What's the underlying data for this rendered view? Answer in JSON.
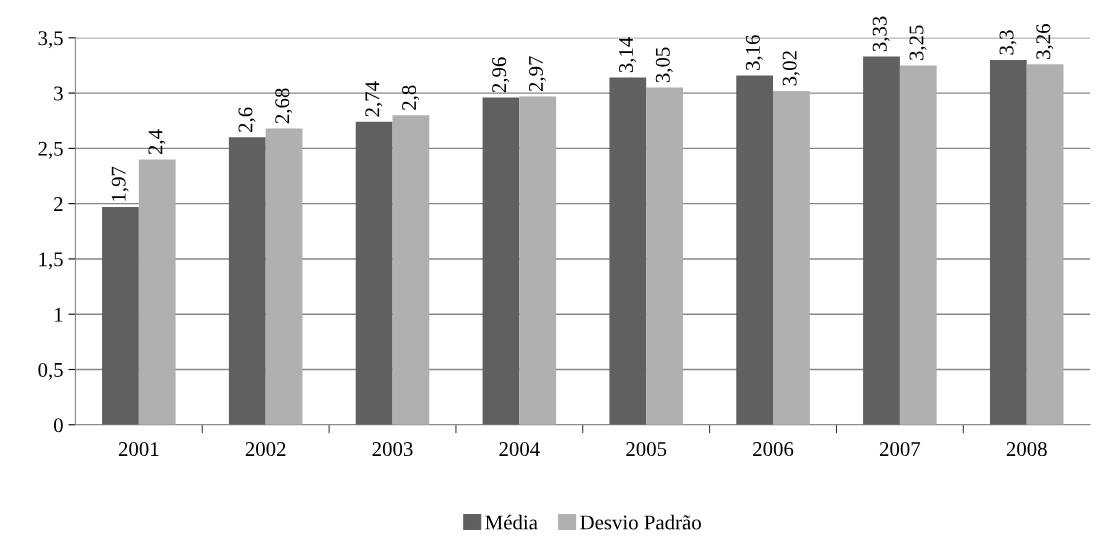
{
  "chart_data": {
    "type": "bar",
    "categories": [
      "2001",
      "2002",
      "2003",
      "2004",
      "2005",
      "2006",
      "2007",
      "2008"
    ],
    "series": [
      {
        "name": "Média",
        "color": "#606060",
        "values": [
          1.97,
          2.6,
          2.74,
          2.96,
          3.14,
          3.16,
          3.33,
          3.3
        ],
        "value_labels": [
          "1,97",
          "2,6",
          "2,74",
          "2,96",
          "3,14",
          "3,16",
          "3,33",
          "3,3"
        ]
      },
      {
        "name": "Desvio Padrão",
        "color": "#b0b0b0",
        "values": [
          2.4,
          2.68,
          2.8,
          2.97,
          3.05,
          3.02,
          3.25,
          3.26
        ],
        "value_labels": [
          "2,4",
          "2,68",
          "2,8",
          "2,97",
          "3,05",
          "3,02",
          "3,25",
          "3,26"
        ]
      }
    ],
    "ylim": [
      0,
      3.5
    ],
    "yticks": [
      0,
      {
        "value": 0.5,
        "label": "0,5"
      },
      1,
      {
        "value": 1.5,
        "label": "1,5"
      },
      2,
      {
        "value": 2.5,
        "label": "2,5"
      },
      3,
      {
        "value": 3.5,
        "label": "3,5"
      }
    ],
    "grid": "y",
    "legend": "bottom"
  }
}
